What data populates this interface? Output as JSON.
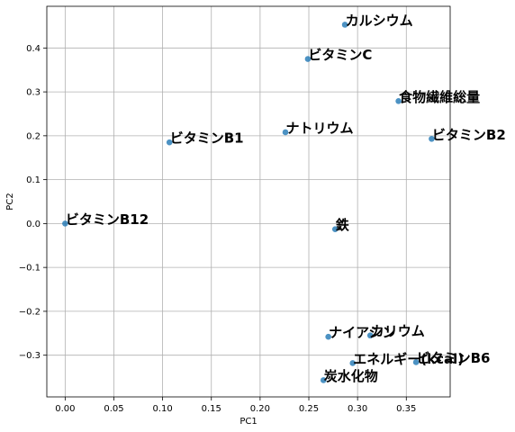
{
  "chart_data": {
    "type": "scatter",
    "title": "",
    "xlabel": "PC1",
    "ylabel": "PC2",
    "xlim": [
      -0.0188,
      0.395
    ],
    "ylim": [
      -0.395,
      0.495
    ],
    "xticks": [
      0.0,
      0.05,
      0.1,
      0.15,
      0.2,
      0.25,
      0.3,
      0.35
    ],
    "xtick_labels": [
      "0.00",
      "0.05",
      "0.10",
      "0.15",
      "0.20",
      "0.25",
      "0.30",
      "0.35"
    ],
    "yticks": [
      -0.3,
      -0.2,
      -0.1,
      0.0,
      0.1,
      0.2,
      0.3,
      0.4
    ],
    "ytick_labels": [
      "−0.3",
      "−0.2",
      "−0.1",
      "0.0",
      "0.1",
      "0.2",
      "0.3",
      "0.4"
    ],
    "grid": true,
    "point_color": "#1f77b4",
    "points": [
      {
        "label": "カルシウム",
        "x": 0.287,
        "y": 0.453
      },
      {
        "label": "ビタミンC",
        "x": 0.249,
        "y": 0.375
      },
      {
        "label": "食物繊維総量",
        "x": 0.342,
        "y": 0.279
      },
      {
        "label": "ビタミンB2",
        "x": 0.376,
        "y": 0.193
      },
      {
        "label": "ナトリウム",
        "x": 0.226,
        "y": 0.208
      },
      {
        "label": "ビタミンB1",
        "x": 0.107,
        "y": 0.185
      },
      {
        "label": "ビタミンB12",
        "x": 0.0,
        "y": 0.0
      },
      {
        "label": "鉄",
        "x": 0.277,
        "y": -0.013
      },
      {
        "label": "ナイアシン",
        "x": 0.27,
        "y": -0.258
      },
      {
        "label": "カリウム",
        "x": 0.313,
        "y": -0.255
      },
      {
        "label": "エネルギー(kcal)",
        "x": 0.295,
        "y": -0.318
      },
      {
        "label": "ビタミンB6",
        "x": 0.36,
        "y": -0.316
      },
      {
        "label": "炭水化物",
        "x": 0.265,
        "y": -0.357
      }
    ]
  }
}
